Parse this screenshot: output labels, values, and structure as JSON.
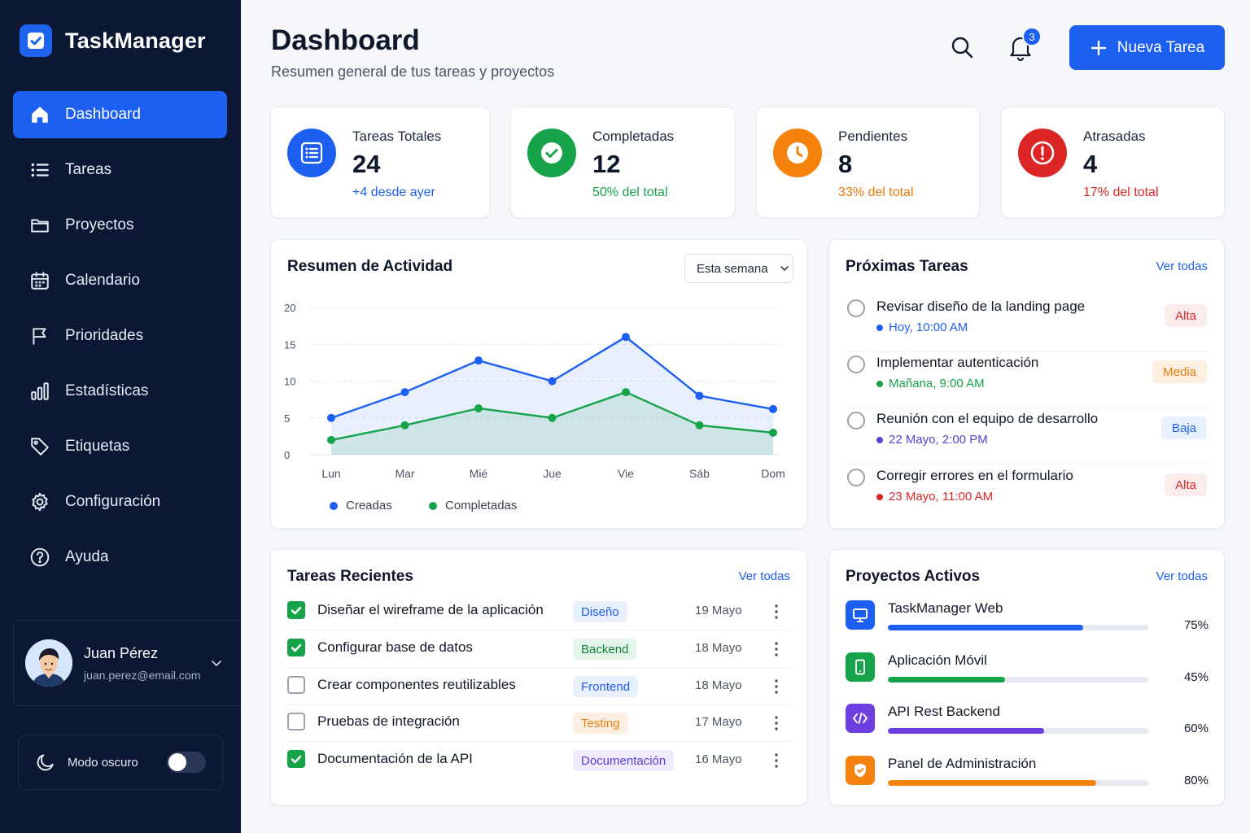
{
  "brand": {
    "name": "TaskManager"
  },
  "sidebar": {
    "items": [
      {
        "label": "Dashboard",
        "icon": "home-icon",
        "active": true
      },
      {
        "label": "Tareas",
        "icon": "list-icon"
      },
      {
        "label": "Proyectos",
        "icon": "folder-icon"
      },
      {
        "label": "Calendario",
        "icon": "calendar-icon"
      },
      {
        "label": "Prioridades",
        "icon": "flag-icon"
      },
      {
        "label": "Estadísticas",
        "icon": "bar-chart-icon"
      },
      {
        "label": "Etiquetas",
        "icon": "tag-icon"
      },
      {
        "label": "Configuración",
        "icon": "gear-icon"
      },
      {
        "label": "Ayuda",
        "icon": "help-circle-icon"
      }
    ],
    "user": {
      "name": "Juan Pérez",
      "email": "juan.perez@email.com"
    },
    "dark_mode": {
      "label": "Modo oscuro",
      "enabled": false
    }
  },
  "header": {
    "title": "Dashboard",
    "subtitle": "Resumen general de tus tareas y proyectos",
    "notifications_count": "3",
    "new_task_label": "Nueva Tarea"
  },
  "stats": [
    {
      "label": "Tareas Totales",
      "value": "24",
      "note": "+4 desde ayer",
      "color": "#1d5ff0",
      "icon": "list-icon"
    },
    {
      "label": "Completadas",
      "value": "12",
      "note": "50% del total",
      "color": "#16a34a",
      "icon": "check-circle-icon"
    },
    {
      "label": "Pendientes",
      "value": "8",
      "note": "33% del total",
      "color": "#f5820d",
      "icon": "clock-icon"
    },
    {
      "label": "Atrasadas",
      "value": "4",
      "note": "17% del total",
      "color": "#dc2626",
      "icon": "alert-circle-icon"
    }
  ],
  "activity": {
    "title": "Resumen de Actividad",
    "range": "Esta semana"
  },
  "chart_data": {
    "type": "area",
    "title": "Resumen de Actividad",
    "categories": [
      "Lun",
      "Mar",
      "Mié",
      "Jue",
      "Vie",
      "Sáb",
      "Dom"
    ],
    "series": [
      {
        "name": "Creadas",
        "values": [
          5,
          8.5,
          12.8,
          10,
          16,
          8,
          6.2
        ],
        "color": "#1d5ff0"
      },
      {
        "name": "Completadas",
        "values": [
          2,
          4,
          6.3,
          5,
          8.5,
          4,
          3
        ],
        "color": "#16a34a"
      }
    ],
    "yticks": [
      0,
      5,
      10,
      15,
      20
    ],
    "ylim": [
      0,
      20
    ],
    "grid": true,
    "legend": "bottom-left"
  },
  "upcoming": {
    "title": "Próximas Tareas",
    "see_all": "Ver todas",
    "items": [
      {
        "title": "Revisar diseño de la landing page",
        "when": "Hoy, 10:00 AM",
        "priority": "Alta",
        "color": "#1d5ff0",
        "p_fg": "#dc2626",
        "p_bg": "#fdecec"
      },
      {
        "title": "Implementar autenticación",
        "when": "Mañana, 9:00 AM",
        "priority": "Media",
        "color": "#16a34a",
        "p_fg": "#ea7a0c",
        "p_bg": "#fdf0e2"
      },
      {
        "title": "Reunión con el equipo de desarrollo",
        "when": "22 Mayo, 2:00 PM",
        "priority": "Baja",
        "color": "#5b3fd6",
        "p_fg": "#1d5ff0",
        "p_bg": "#e8effd"
      },
      {
        "title": "Corregir errores en el formulario",
        "when": "23 Mayo, 11:00 AM",
        "priority": "Alta",
        "color": "#dc2626",
        "p_fg": "#dc2626",
        "p_bg": "#fdecec"
      }
    ]
  },
  "recent": {
    "title": "Tareas Recientes",
    "see_all": "Ver todas",
    "rows": [
      {
        "title": "Diseñar el wireframe de la aplicación",
        "tag": "Diseño",
        "date": "19 Mayo",
        "done": true,
        "t_fg": "#1d5ff0",
        "t_bg": "#e8effd"
      },
      {
        "title": "Configurar base de datos",
        "tag": "Backend",
        "date": "18 Mayo",
        "done": true,
        "t_fg": "#15803d",
        "t_bg": "#e4f5ea"
      },
      {
        "title": "Crear componentes reutilizables",
        "tag": "Frontend",
        "date": "18 Mayo",
        "done": false,
        "t_fg": "#1d5ff0",
        "t_bg": "#e8effd"
      },
      {
        "title": "Pruebas de integración",
        "tag": "Testing",
        "date": "17 Mayo",
        "done": false,
        "t_fg": "#ea7a0c",
        "t_bg": "#fdf0e2"
      },
      {
        "title": "Documentación de la API",
        "tag": "Documentación",
        "date": "16 Mayo",
        "done": true,
        "t_fg": "#5b3fd6",
        "t_bg": "#efeafd"
      }
    ]
  },
  "projects": {
    "title": "Proyectos Activos",
    "see_all": "Ver todas",
    "items": [
      {
        "name": "TaskManager Web",
        "pct_label": "75%",
        "progress": 0.75,
        "color": "#1d5ff0",
        "icon": "monitor-icon"
      },
      {
        "name": "Aplicación Móvil",
        "pct_label": "45%",
        "progress": 0.45,
        "color": "#16a34a",
        "icon": "smartphone-icon"
      },
      {
        "name": "API Rest Backend",
        "pct_label": "60%",
        "progress": 0.6,
        "color": "#6d3fe0",
        "icon": "code-icon"
      },
      {
        "name": "Panel de Administración",
        "pct_label": "80%",
        "progress": 0.8,
        "color": "#f5820d",
        "icon": "shield-icon"
      }
    ]
  }
}
